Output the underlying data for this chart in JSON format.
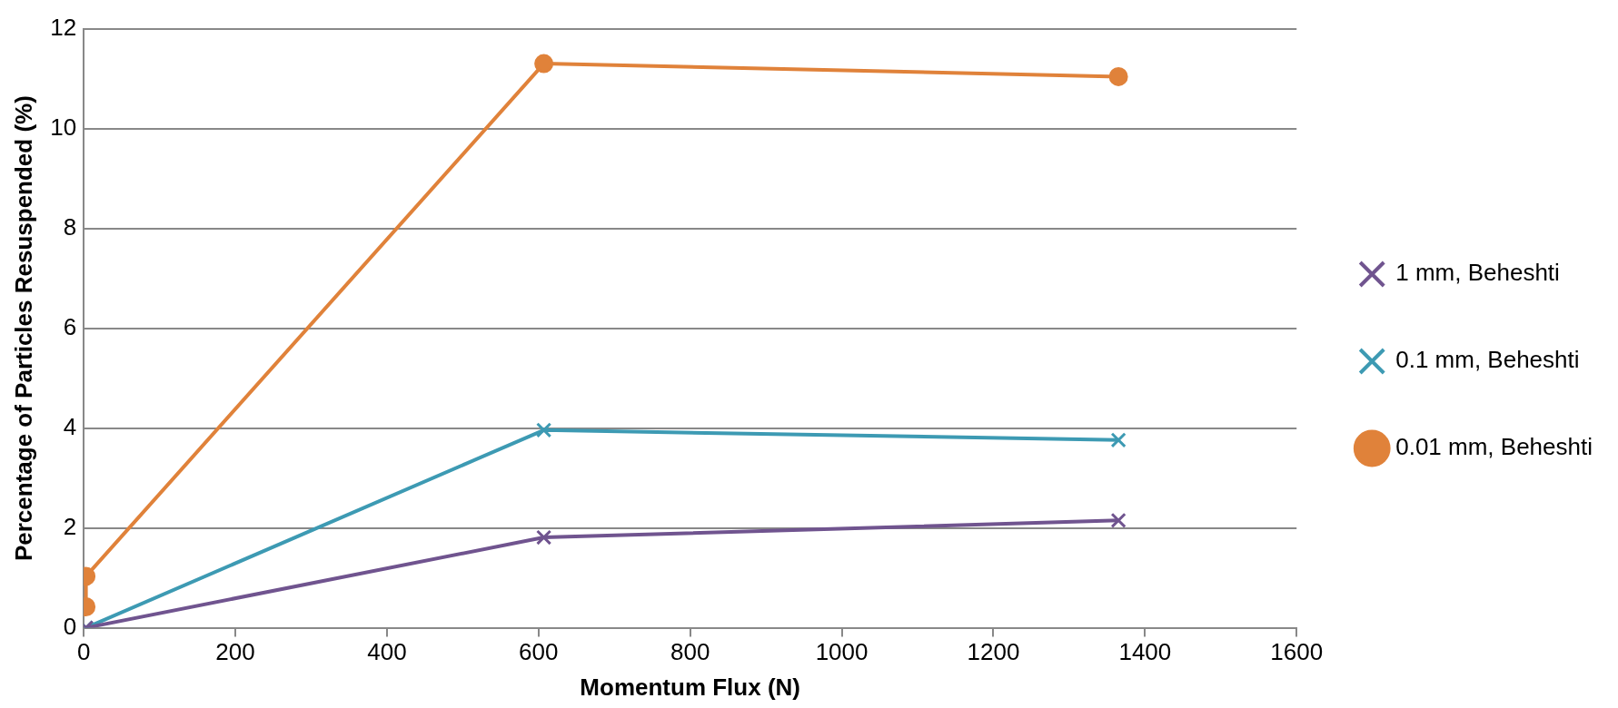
{
  "chart_data": {
    "type": "line",
    "xlabel": "Momentum Flux (N)",
    "ylabel": "Percentage of Particles Resuspended (%)",
    "xlim": [
      0,
      1600
    ],
    "xticks": [
      0,
      200,
      400,
      600,
      800,
      1000,
      1200,
      1400,
      1600
    ],
    "ylim": [
      0,
      12
    ],
    "yticks": [
      0,
      2,
      4,
      6,
      8,
      10,
      12
    ],
    "grid": "y",
    "legend": "right",
    "series": [
      {
        "name": "1 mm, Beheshti",
        "color": "#70548f",
        "marker": "cross",
        "x": [
          3,
          607,
          1365
        ],
        "values": [
          0,
          1.81,
          2.15
        ]
      },
      {
        "name": "0.1 mm, Beheshti",
        "color": "#3d9ab3",
        "marker": "cross",
        "x": [
          3,
          607,
          1365
        ],
        "values": [
          0,
          3.96,
          3.76
        ]
      },
      {
        "name": "0.01 mm, Beheshti",
        "color": "#e0823a",
        "marker": "circle",
        "x": [
          3,
          3,
          607,
          1365
        ],
        "values": [
          0.42,
          1.03,
          11.3,
          11.04
        ]
      }
    ]
  }
}
